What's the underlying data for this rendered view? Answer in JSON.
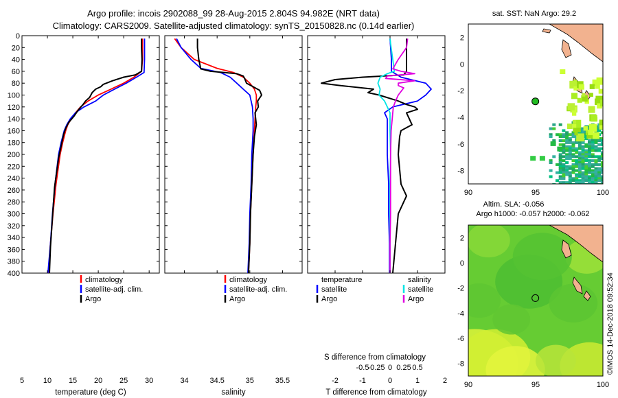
{
  "title": {
    "line1": "Argo profile: incois 2902088_99 28-Aug-2015 2.804S 94.982E (NRT data)",
    "line2": "Climatology: CARS2009. Satellite-adjusted climatology: synTS_20150828.nc (0.14d earlier)"
  },
  "colors": {
    "climatology": "#ff0000",
    "satellite": "#0000ff",
    "argo": "#000000",
    "s_satellite": "#00e5e5",
    "s_argo": "#e000e0"
  },
  "depth_ticks": [
    "0",
    "20",
    "40",
    "60",
    "80",
    "100",
    "120",
    "140",
    "160",
    "180",
    "200",
    "220",
    "240",
    "260",
    "280",
    "300",
    "320",
    "340",
    "360",
    "380",
    "400"
  ],
  "chart_data": [
    {
      "type": "line",
      "name": "temperature",
      "xlabel": "temperature (deg C)",
      "xlim": [
        5,
        32
      ],
      "ylim": [
        0,
        400
      ],
      "xticks": [
        "5",
        "10",
        "15",
        "20",
        "25",
        "30"
      ],
      "legend": [
        "climatology",
        "satellite-adj. clim.",
        "Argo"
      ],
      "series": [
        {
          "name": "climatology",
          "depth": [
            5,
            40,
            60,
            70,
            80,
            90,
            100,
            110,
            120,
            130,
            140,
            150,
            160,
            180,
            200,
            250,
            300,
            350,
            400
          ],
          "values": [
            28.7,
            28.7,
            28.5,
            27.0,
            25.0,
            22.5,
            20.0,
            18.0,
            16.5,
            15.5,
            14.7,
            14.0,
            13.6,
            13.0,
            12.5,
            11.7,
            11.1,
            10.6,
            10.2
          ]
        },
        {
          "name": "satellite-adj. clim.",
          "depth": [
            5,
            40,
            62,
            70,
            80,
            90,
            100,
            110,
            120,
            130,
            140,
            150,
            160,
            180,
            200,
            250,
            300,
            350,
            400
          ],
          "values": [
            29.1,
            29.1,
            29.0,
            27.5,
            25.5,
            23.2,
            21.0,
            19.5,
            17.2,
            15.5,
            14.5,
            13.8,
            13.3,
            12.7,
            12.2,
            11.5,
            11.0,
            10.6,
            10.1
          ]
        },
        {
          "name": "Argo",
          "depth": [
            5,
            20,
            40,
            60,
            66,
            70,
            76,
            82,
            86,
            90,
            96,
            104,
            110,
            116,
            126,
            136,
            146,
            156,
            166,
            186,
            206,
            256,
            306,
            356,
            400
          ],
          "values": [
            28.5,
            28.5,
            28.6,
            28.5,
            27.3,
            25.0,
            22.8,
            21.0,
            20.5,
            19.5,
            18.8,
            18.3,
            17.5,
            17.0,
            16.0,
            15.2,
            14.2,
            13.6,
            13.2,
            12.7,
            12.2,
            11.4,
            11.0,
            10.6,
            10.4
          ]
        }
      ]
    },
    {
      "type": "line",
      "name": "salinity",
      "xlabel": "salinity",
      "xlim": [
        33.7,
        35.8
      ],
      "ylim": [
        0,
        400
      ],
      "xticks": [
        "34",
        "34.5",
        "35",
        "35.5"
      ],
      "legend": [
        "climatology",
        "satellite-adj. clim.",
        "Argo"
      ],
      "series": [
        {
          "name": "climatology",
          "depth": [
            5,
            20,
            40,
            55,
            62,
            70,
            80,
            90,
            100,
            110,
            120,
            140,
            160,
            200,
            250,
            300,
            350,
            400
          ],
          "values": [
            33.85,
            33.95,
            34.15,
            34.5,
            34.75,
            34.9,
            35.0,
            35.07,
            35.1,
            35.1,
            35.09,
            35.08,
            35.07,
            35.05,
            35.03,
            35.01,
            35.0,
            34.98
          ]
        },
        {
          "name": "satellite-adj. clim.",
          "depth": [
            5,
            20,
            40,
            55,
            62,
            70,
            80,
            90,
            100,
            110,
            120,
            140,
            160,
            200,
            250,
            300,
            350,
            400
          ],
          "values": [
            33.88,
            33.95,
            34.1,
            34.25,
            34.55,
            34.7,
            34.8,
            34.9,
            35.0,
            35.02,
            35.04,
            35.05,
            35.05,
            35.03,
            35.02,
            35.0,
            34.99,
            34.97
          ]
        },
        {
          "name": "Argo",
          "depth": [
            5,
            20,
            40,
            56,
            60,
            64,
            68,
            72,
            80,
            86,
            92,
            100,
            110,
            120,
            130,
            150,
            170,
            200,
            250,
            300,
            350,
            400
          ],
          "values": [
            34.2,
            34.2,
            34.22,
            34.25,
            34.4,
            34.8,
            34.9,
            34.92,
            34.95,
            35.05,
            35.15,
            35.18,
            35.12,
            35.13,
            35.08,
            35.1,
            35.07,
            35.05,
            35.03,
            35.01,
            35.0,
            34.98
          ]
        }
      ]
    },
    {
      "type": "line",
      "name": "difference",
      "xlabel": "T difference from climatology",
      "xlabel_top": "S difference from climatology",
      "xlim": [
        -3,
        2
      ],
      "ylim": [
        0,
        400
      ],
      "xticks": [
        "-2",
        "-1",
        "0",
        "1",
        "2"
      ],
      "xticks_top": [
        "-0.5",
        "-0.25",
        "0",
        "0.25",
        "0.5"
      ],
      "legend_t": [
        "temperature",
        "satellite",
        "Argo"
      ],
      "legend_s": [
        "salinity",
        "satellite",
        "Argo"
      ],
      "series": [
        {
          "name": "T satellite",
          "depth": [
            5,
            40,
            60,
            70,
            80,
            90,
            100,
            110,
            120,
            130,
            140,
            150,
            160,
            200,
            250,
            300,
            350,
            400
          ],
          "values": [
            0.0,
            0.05,
            0.05,
            0.4,
            1.3,
            1.5,
            1.3,
            1.0,
            0.1,
            -0.2,
            -0.1,
            -0.1,
            -0.1,
            -0.1,
            -0.05,
            -0.05,
            -0.02,
            -0.02
          ]
        },
        {
          "name": "T Argo",
          "depth": [
            5,
            40,
            60,
            66,
            70,
            74,
            80,
            84,
            90,
            96,
            100,
            110,
            116,
            120,
            124,
            130,
            140,
            150,
            160,
            170,
            200,
            250,
            270,
            280,
            300,
            350,
            400
          ],
          "values": [
            0.6,
            0.6,
            0.6,
            0.5,
            -1.0,
            -2.0,
            -2.5,
            -1.8,
            -0.6,
            -0.8,
            -0.4,
            0.3,
            0.6,
            0.9,
            1.0,
            0.6,
            0.7,
            0.8,
            0.4,
            0.35,
            0.3,
            0.4,
            0.6,
            0.5,
            0.3,
            0.2,
            0.1
          ]
        },
        {
          "name": "S satellite",
          "depth": [
            5,
            20,
            40,
            60,
            64,
            70,
            80,
            90,
            100,
            110,
            120,
            130,
            140,
            160,
            200,
            250,
            300,
            400
          ],
          "values": [
            0.0,
            0.02,
            0.05,
            0.08,
            -0.05,
            -0.18,
            -0.22,
            -0.18,
            -0.2,
            -0.1,
            -0.05,
            0.0,
            0.0,
            0.0,
            0.01,
            0.0,
            0.0,
            0.0
          ]
        },
        {
          "name": "S Argo",
          "depth": [
            5,
            20,
            40,
            56,
            60,
            64,
            68,
            72,
            76,
            80,
            84,
            88,
            94,
            100,
            110,
            120,
            140,
            160,
            200,
            250,
            300,
            350,
            400
          ],
          "values": [
            0.32,
            0.3,
            0.15,
            0.05,
            0.2,
            0.45,
            -0.05,
            -0.08,
            0.45,
            0.15,
            0.15,
            0.25,
            0.2,
            0.15,
            0.1,
            0.06,
            0.04,
            0.02,
            0.01,
            0.01,
            0.01,
            0.0,
            0.0
          ]
        }
      ]
    },
    {
      "type": "heatmap",
      "name": "sst_map",
      "title": "sat. SST: NaN Argo: 29.2",
      "xlim": [
        90,
        100
      ],
      "ylim": [
        -9,
        3
      ],
      "xticks": [
        "90",
        "95",
        "100"
      ],
      "yticks": [
        "2",
        "0",
        "-2",
        "-4",
        "-6",
        "-8"
      ],
      "marker": {
        "lon": 94.982,
        "lat": -2.804
      }
    },
    {
      "type": "heatmap",
      "name": "sla_map",
      "title": "Altim. SLA: -0.056",
      "subtitle": "Argo h1000: -0.057 h2000: -0.062",
      "xlim": [
        90,
        100
      ],
      "ylim": [
        -9,
        3
      ],
      "xticks": [
        "90",
        "95",
        "100"
      ],
      "yticks": [
        "2",
        "0",
        "-2",
        "-4",
        "-6",
        "-8"
      ],
      "marker": {
        "lon": 94.982,
        "lat": -2.804
      }
    }
  ],
  "credit": "©IMOS 14-Dec-2018 09:52:34"
}
